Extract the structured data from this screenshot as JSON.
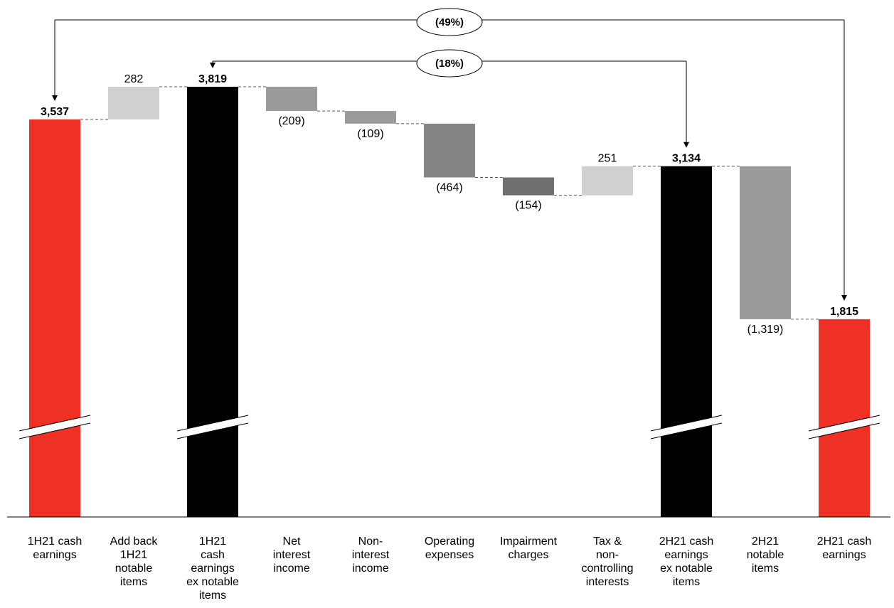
{
  "chart_data": {
    "type": "bar",
    "subtype": "waterfall",
    "axis_break": true,
    "categories": [
      [
        "1H21 cash",
        "earnings"
      ],
      [
        "Add back",
        "1H21",
        "notable",
        "items"
      ],
      [
        "1H21",
        "cash",
        "earnings",
        "ex notable",
        "items"
      ],
      [
        "Net",
        "interest",
        "income"
      ],
      [
        "Non-",
        "interest",
        "income"
      ],
      [
        "Operating",
        "expenses"
      ],
      [
        "Impairment",
        "charges"
      ],
      [
        "Tax &",
        "non-",
        "controlling",
        "interests"
      ],
      [
        "2H21 cash",
        "earnings",
        "ex notable",
        "items"
      ],
      [
        "2H21",
        "notable",
        "items"
      ],
      [
        "2H21 cash",
        "earnings"
      ]
    ],
    "values": [
      3537,
      282,
      3819,
      -209,
      -109,
      -464,
      -154,
      251,
      3134,
      -1319,
      1815
    ],
    "bar_kind": [
      "total",
      "delta",
      "total",
      "delta",
      "delta",
      "delta",
      "delta",
      "delta",
      "total",
      "delta",
      "total"
    ],
    "value_labels": [
      "3,537",
      "282",
      "3,819",
      "(209)",
      "(109)",
      "(464)",
      "(154)",
      "251",
      "3,134",
      "(1,319)",
      "1,815"
    ],
    "bold_labels": [
      true,
      false,
      true,
      false,
      false,
      false,
      false,
      false,
      true,
      false,
      true
    ],
    "colors": [
      "#ee3124",
      "#d0d0d2",
      "#000000",
      "#9a9a9c",
      "#9a9a9c",
      "#858587",
      "#6f6f71",
      "#d0d0d2",
      "#000000",
      "#9a9a9c",
      "#ee3124"
    ],
    "annotations": [
      {
        "label": "(49%)",
        "from": 10,
        "to": 0
      },
      {
        "label": "(18%)",
        "from": 8,
        "to": 2
      }
    ],
    "colors_meaning": {
      "cash_earnings": "#ee3124",
      "ex_notable": "#000000",
      "positive": "#d0d0d2",
      "negative": "#9a9a9c"
    }
  }
}
